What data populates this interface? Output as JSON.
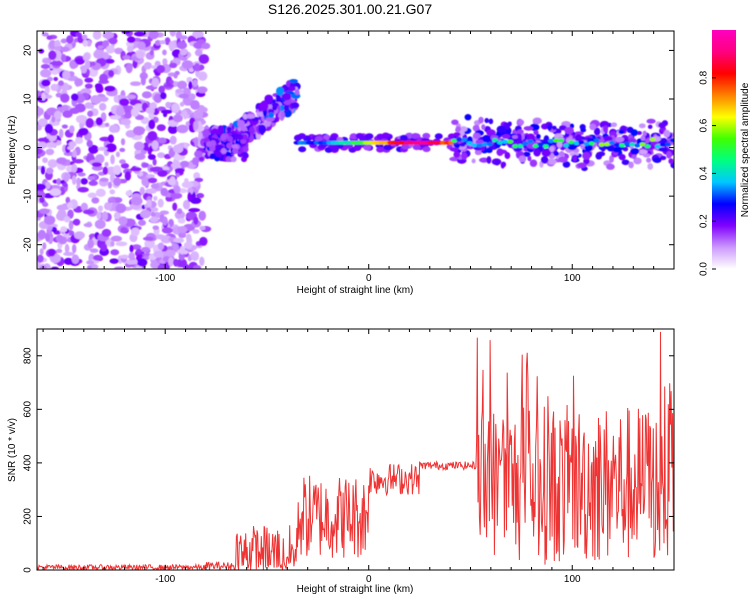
{
  "title": "S126.2025.301.00.21.G07",
  "chart_data": [
    {
      "type": "heatmap",
      "title": "S126.2025.301.00.21.G07",
      "xlabel": "Height of straight line (km)",
      "ylabel": "Frequency (Hz)",
      "xlim": [
        -163,
        150
      ],
      "ylim": [
        -25,
        24
      ],
      "xticks": [
        -100,
        0,
        100
      ],
      "yticks": [
        -20,
        -10,
        0,
        10,
        20
      ],
      "colorbar": {
        "label": "Normalized spectral amplitude",
        "range": [
          0,
          1
        ],
        "ticks": [
          "0.0",
          "0.2",
          "0.4",
          "0.6",
          "0.8"
        ],
        "colors": [
          "#ffffff",
          "#cc99ff",
          "#8000ff",
          "#0000ff",
          "#00c8ff",
          "#00ff80",
          "#40ff00",
          "#ffff00",
          "#ff8000",
          "#ff0000",
          "#ff0080",
          "#ff00c0"
        ]
      },
      "regions": [
        {
          "name": "noise",
          "x": [
            -163,
            -80
          ],
          "freq": [
            -25,
            24
          ]
        },
        {
          "name": "ramp",
          "x": [
            -80,
            -35
          ],
          "freq": [
            -2,
            14
          ]
        },
        {
          "name": "steady-line",
          "x": [
            -35,
            42
          ],
          "freq": [
            0,
            2
          ]
        },
        {
          "name": "noisy-line",
          "x": [
            42,
            150
          ],
          "freq": [
            -5,
            8
          ]
        }
      ],
      "peak": {
        "x": 25,
        "freq": 1
      }
    },
    {
      "type": "line",
      "xlabel": "Height of straight line (km)",
      "ylabel": "SNR (10 * v/v)",
      "xlim": [
        -163,
        150
      ],
      "ylim": [
        0,
        900
      ],
      "xticks": [
        -100,
        0,
        100
      ],
      "yticks": [
        0,
        200,
        400,
        600,
        800
      ],
      "color": "#ee3333",
      "segments": [
        {
          "x": [
            -163,
            -80
          ],
          "level": 10,
          "noise": 10
        },
        {
          "x": [
            -80,
            -65
          ],
          "level": 15,
          "noise": 15
        },
        {
          "x": [
            -65,
            -35
          ],
          "level": 60,
          "noise": 110
        },
        {
          "x": [
            -35,
            0
          ],
          "level": 200,
          "noise": 160
        },
        {
          "x": [
            0,
            25
          ],
          "level": 340,
          "noise": 60
        },
        {
          "x": [
            25,
            53
          ],
          "level": 390,
          "noise": 15
        },
        {
          "x": [
            53,
            150
          ],
          "level": 320,
          "noise": 300
        }
      ],
      "max_value": 900
    }
  ]
}
